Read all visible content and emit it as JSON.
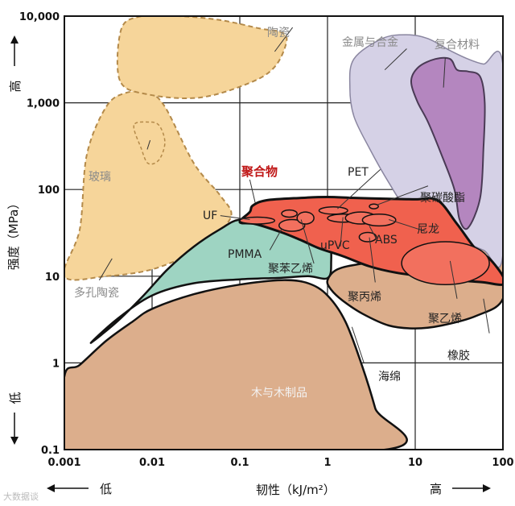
{
  "chart_data": {
    "type": "area",
    "title": "",
    "xlabel": "韧性（kJ/m²）",
    "ylabel": "强度（MPa）",
    "xscale": "log",
    "yscale": "log",
    "xlim": [
      0.001,
      100
    ],
    "ylim": [
      0.1,
      10000
    ],
    "grid": true,
    "x_ticks": [
      "0.001",
      "0.01",
      "0.1",
      "1",
      "10",
      "100"
    ],
    "y_ticks": [
      "0.1",
      "1",
      "10",
      "100",
      "1,000",
      "10,000"
    ],
    "x_low": "低",
    "x_high": "高",
    "y_low": "低",
    "y_high": "高",
    "regions": [
      {
        "key": "wood",
        "name": "木与木制品",
        "color": "#dcae8c",
        "points": [
          [
            0.001,
            0.7
          ],
          [
            0.0015,
            0.95
          ],
          [
            0.003,
            1.8
          ],
          [
            0.006,
            3
          ],
          [
            0.01,
            4.2
          ],
          [
            0.03,
            6.2
          ],
          [
            0.1,
            8
          ],
          [
            0.3,
            9
          ],
          [
            0.6,
            8.3
          ],
          [
            1,
            6
          ],
          [
            1.6,
            3
          ],
          [
            2.5,
            0.9
          ],
          [
            3.5,
            0.3
          ],
          [
            4.6,
            0.1
          ],
          [
            0.001,
            0.1
          ]
        ]
      },
      {
        "key": "foam",
        "name": "海绵",
        "color": "#dcae8c",
        "points": []
      },
      {
        "key": "rubber",
        "name": "橡胶",
        "color": "#dcae8c",
        "points": [
          [
            1,
            9
          ],
          [
            1.3,
            12
          ],
          [
            2.5,
            14
          ],
          [
            6,
            15.5
          ],
          [
            15,
            18
          ],
          [
            40,
            20
          ],
          [
            100,
            18.5
          ],
          [
            100,
            5.5
          ],
          [
            50,
            3.5
          ],
          [
            20,
            2.7
          ],
          [
            10,
            2.5
          ],
          [
            5,
            2.7
          ],
          [
            2.5,
            3.7
          ],
          [
            1.5,
            5.2
          ],
          [
            1.1,
            7
          ]
        ]
      },
      {
        "key": "porous_ceramics",
        "name": "多孔陶瓷",
        "color": "#f6d59a",
        "points": [
          [
            0.001,
            10
          ],
          [
            0.0015,
            35
          ],
          [
            0.0018,
            250
          ],
          [
            0.003,
            900
          ],
          [
            0.005,
            1300
          ],
          [
            0.009,
            1300
          ],
          [
            0.014,
            900
          ],
          [
            0.03,
            200
          ],
          [
            0.06,
            85
          ],
          [
            0.08,
            50
          ],
          [
            0.05,
            28
          ],
          [
            0.03,
            19
          ],
          [
            0.01,
            12
          ],
          [
            0.003,
            10
          ]
        ]
      },
      {
        "key": "ceramics",
        "name": "陶瓷",
        "color": "#f6d59a",
        "points": [
          [
            0.0043,
            1800
          ],
          [
            0.0044,
            6800
          ],
          [
            0.007,
            9800
          ],
          [
            0.02,
            10000
          ],
          [
            0.06,
            9000
          ],
          [
            0.17,
            7200
          ],
          [
            0.3,
            6500
          ],
          [
            0.34,
            5000
          ],
          [
            0.25,
            2600
          ],
          [
            0.13,
            1700
          ],
          [
            0.035,
            1150
          ],
          [
            0.009,
            1250
          ]
        ]
      },
      {
        "key": "glass",
        "name": "玻璃",
        "color": "#f6d59a",
        "points": [
          [
            0.0062,
            550
          ],
          [
            0.0075,
            300
          ],
          [
            0.009,
            200
          ],
          [
            0.012,
            220
          ],
          [
            0.014,
            350
          ],
          [
            0.012,
            550
          ],
          [
            0.009,
            600
          ]
        ]
      },
      {
        "key": "polystyrene",
        "name": "聚苯乙烯",
        "color": "#9ed4c2",
        "points": [
          [
            0.002,
            1.7
          ],
          [
            0.004,
            3.2
          ],
          [
            0.01,
            6
          ],
          [
            0.03,
            8.3
          ],
          [
            0.1,
            9.2
          ],
          [
            0.3,
            9.6
          ],
          [
            0.6,
            10
          ],
          [
            1,
            9.5
          ],
          [
            1.1,
            14
          ],
          [
            1,
            25
          ],
          [
            0.5,
            30
          ],
          [
            0.2,
            42
          ],
          [
            0.1,
            45
          ],
          [
            0.06,
            35
          ],
          [
            0.03,
            22
          ],
          [
            0.015,
            12
          ],
          [
            0.008,
            6
          ],
          [
            0.004,
            3
          ]
        ]
      },
      {
        "key": "metals",
        "name": "金属与合金",
        "color": "#d5d1e6",
        "points": [
          [
            2,
            3200
          ],
          [
            4.2,
            5500
          ],
          [
            8,
            6100
          ],
          [
            14,
            5500
          ],
          [
            25,
            4000
          ],
          [
            40,
            3200
          ],
          [
            60,
            2800
          ],
          [
            100,
            2700
          ],
          [
            100,
            18
          ],
          [
            60,
            20
          ],
          [
            30,
            28
          ],
          [
            15,
            40
          ],
          [
            8,
            60
          ],
          [
            5,
            120
          ],
          [
            3,
            300
          ],
          [
            2,
            700
          ],
          [
            1.8,
            1500
          ]
        ]
      },
      {
        "key": "composites",
        "name": "复合材料",
        "color": "#b486bf",
        "points": [
          [
            9,
            1800
          ],
          [
            10.5,
            1050
          ],
          [
            14,
            600
          ],
          [
            20,
            250
          ],
          [
            28,
            100
          ],
          [
            32,
            45
          ],
          [
            40,
            36
          ],
          [
            55,
            80
          ],
          [
            60,
            300
          ],
          [
            62,
            1000
          ],
          [
            55,
            2000
          ],
          [
            40,
            2300
          ],
          [
            30,
            2400
          ],
          [
            25,
            3200
          ],
          [
            17,
            3200
          ],
          [
            11,
            2600
          ]
        ]
      },
      {
        "key": "polymers",
        "name": "聚合物",
        "color": "#f0614e",
        "points": [
          [
            0.1,
            42
          ],
          [
            0.13,
            55
          ],
          [
            0.14,
            65
          ],
          [
            0.2,
            75
          ],
          [
            0.5,
            80
          ],
          [
            1,
            82
          ],
          [
            2,
            80
          ],
          [
            5,
            78
          ],
          [
            10,
            77
          ],
          [
            18,
            75
          ],
          [
            30,
            40
          ],
          [
            50,
            20
          ],
          [
            70,
            16
          ],
          [
            100,
            10
          ],
          [
            100,
            8
          ],
          [
            60,
            8.5
          ],
          [
            30,
            9
          ],
          [
            15,
            9.7
          ],
          [
            6,
            11
          ],
          [
            3,
            13
          ],
          [
            1.5,
            17
          ],
          [
            0.8,
            21
          ],
          [
            0.5,
            26
          ],
          [
            0.3,
            32
          ],
          [
            0.15,
            40
          ]
        ]
      }
    ],
    "annotations": [
      {
        "key": "pet",
        "text": "PET"
      },
      {
        "key": "pc",
        "text": "聚碳酸酯"
      },
      {
        "key": "uf",
        "text": "UF"
      },
      {
        "key": "pmma",
        "text": "PMMA"
      },
      {
        "key": "upvc",
        "text": "uPVC"
      },
      {
        "key": "abs",
        "text": "ABS"
      },
      {
        "key": "nylon",
        "text": "尼龙"
      },
      {
        "key": "pp",
        "text": "聚丙烯"
      },
      {
        "key": "pe",
        "text": "聚乙烯"
      }
    ]
  },
  "watermark": "大数据谈"
}
